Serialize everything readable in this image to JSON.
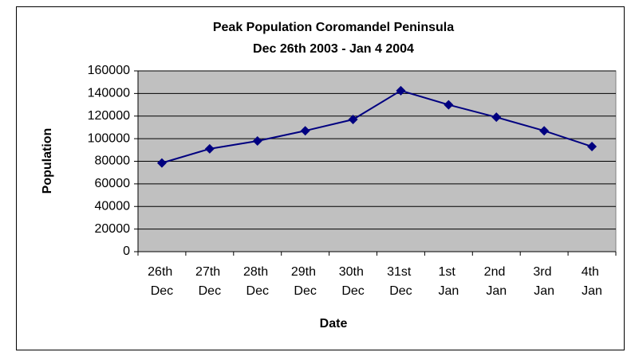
{
  "chart_data": {
    "type": "line",
    "title": "Peak Population Coromandel Peninsula",
    "subtitle": "Dec 26th 2003 - Jan 4 2004",
    "x_label": "Date",
    "y_label": "Population",
    "categories": [
      "26th Dec",
      "27th Dec",
      "28th Dec",
      "29th Dec",
      "30th Dec",
      "31st Dec",
      "1st Jan",
      "2nd Jan",
      "3rd Jan",
      "4th Jan"
    ],
    "series": [
      {
        "name": "Population",
        "color": "#000080",
        "values": [
          78500,
          91000,
          98000,
          107000,
          117000,
          142500,
          130000,
          119000,
          107000,
          93000
        ]
      }
    ],
    "ylim": [
      0,
      160000
    ],
    "yticks": [
      0,
      20000,
      40000,
      60000,
      80000,
      100000,
      120000,
      140000,
      160000
    ],
    "grid": true
  }
}
